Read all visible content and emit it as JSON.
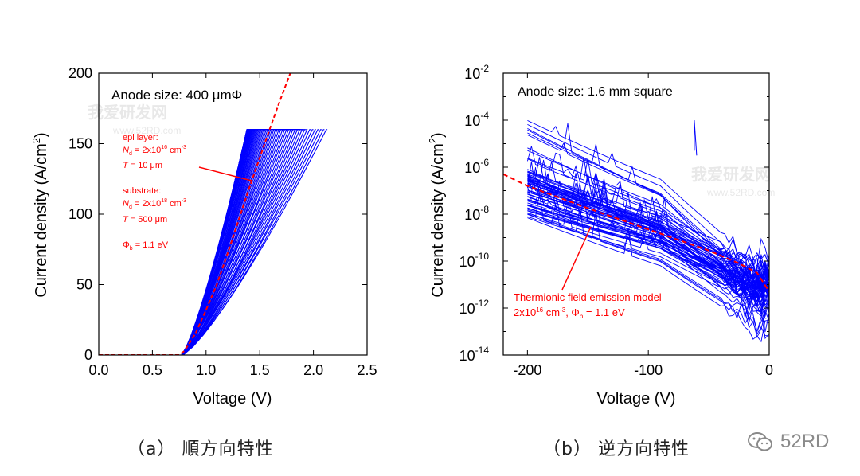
{
  "chart_data": [
    {
      "id": "forward",
      "type": "line",
      "title": "",
      "xlabel": "Voltage (V)",
      "ylabel": "Current density (A/cm2)",
      "ylabel_main": "Current density (A/cm",
      "ylabel_sup": "2",
      "ylabel_tail": ")",
      "xlim": [
        0,
        2.5
      ],
      "ylim": [
        0,
        200
      ],
      "xticks": [
        0,
        0.5,
        1,
        1.5,
        2,
        2.5
      ],
      "xtick_labels": [
        "0.0",
        "0.5",
        "1.0",
        "1.5",
        "2.0",
        "2.5"
      ],
      "yticks": [
        0,
        50,
        100,
        150,
        200
      ],
      "ytick_labels": [
        "0",
        "50",
        "100",
        "150",
        "200"
      ],
      "annotation_title": "Anode size: 400 μmΦ",
      "legend_text": {
        "epi_label": "epi layer:",
        "epi_nd": "N",
        "epi_nd_sub": "d",
        "epi_nd_val": " = 2x10",
        "epi_nd_exp": "16",
        "epi_nd_unit": " cm",
        "epi_nd_unit_exp": "-3",
        "epi_t": "T",
        "epi_t_val": " = 10 μm",
        "sub_label": "substrate:",
        "sub_nd": "N",
        "sub_nd_sub": "d",
        "sub_nd_val": " = 2x10",
        "sub_nd_exp": "18",
        "sub_nd_unit": " cm",
        "sub_nd_unit_exp": "-3",
        "sub_t": "T",
        "sub_t_val": " = 500 μm",
        "phi": "Φ",
        "phi_sub": "b",
        "phi_val": " = 1.1 eV"
      },
      "measured": {
        "color": "#0000ff",
        "count": 60,
        "turn_on_v": 0.78,
        "current_limit": 160,
        "v_at_limit_range": [
          1.38,
          2.12
        ]
      },
      "model": {
        "color": "#ff0000",
        "style": "dashed",
        "points": [
          [
            0,
            0
          ],
          [
            0.75,
            0
          ],
          [
            0.8,
            3
          ],
          [
            0.9,
            15
          ],
          [
            1.0,
            32
          ],
          [
            1.1,
            50
          ],
          [
            1.2,
            72
          ],
          [
            1.3,
            95
          ],
          [
            1.4,
            118
          ],
          [
            1.5,
            140
          ],
          [
            1.6,
            162
          ],
          [
            1.7,
            183
          ],
          [
            1.8,
            203
          ]
        ]
      },
      "caption": "（a） 順方向特性"
    },
    {
      "id": "reverse",
      "type": "line",
      "title": "",
      "xlabel": "Voltage (V)",
      "ylabel_main": "Current density (A/cm",
      "ylabel_sup": "2",
      "ylabel_tail": ")",
      "yscale": "log",
      "xlim": [
        -220,
        0
      ],
      "ylim_exp": [
        -14,
        -2
      ],
      "xticks": [
        -200,
        -100,
        0
      ],
      "xtick_labels": [
        "-200",
        "-100",
        "0"
      ],
      "ytick_exps": [
        -14,
        -12,
        -10,
        -8,
        -6,
        -4,
        -2
      ],
      "ytick_base": "10",
      "ytick_exp_labels": [
        "-14",
        "-12",
        "-10",
        "-8",
        "-6",
        "-4",
        "-2"
      ],
      "annotation_title": "Anode size: 1.6 mm square",
      "model_label_1": "Thermionic field emission model",
      "model_label_2a": "2x10",
      "model_label_2b": "16",
      "model_label_2c": " cm",
      "model_label_2d": "-3",
      "model_label_2e": ", Φ",
      "model_label_2f": "b",
      "model_label_2g": " = 1.1 eV",
      "measured": {
        "color": "#0000ff",
        "count": 70,
        "v_start": -200
      },
      "model": {
        "color": "#ff0000",
        "style": "dashed",
        "points_log10": [
          [
            -220,
            -6.3
          ],
          [
            -200,
            -6.8
          ],
          [
            -150,
            -7.75
          ],
          [
            -100,
            -8.65
          ],
          [
            -50,
            -9.55
          ],
          [
            -25,
            -10.1
          ],
          [
            -10,
            -10.5
          ],
          [
            0,
            -11.3
          ]
        ]
      },
      "caption": "（b） 逆方向特性"
    }
  ],
  "watermark": {
    "line1": "我爱研发网",
    "line2": "www.52RD.com"
  },
  "brand": {
    "text": "52RD",
    "icon": "wechat-icon"
  }
}
